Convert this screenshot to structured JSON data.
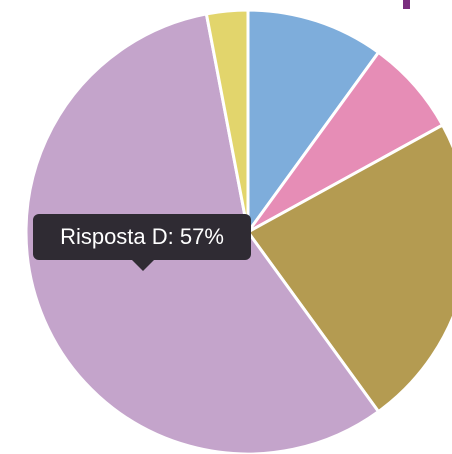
{
  "chart_data": {
    "type": "pie",
    "start_angle_deg": 0,
    "direction": "clockwise",
    "slices": [
      {
        "value": 10,
        "color": "#7eaddb"
      },
      {
        "value": 7,
        "color": "#e68db6"
      },
      {
        "value": 23,
        "color": "#b49b51"
      },
      {
        "value": 57,
        "color": "#c4a4cb"
      },
      {
        "value": 3,
        "color": "#e2d56c"
      }
    ],
    "slice_border_color": "#ffffff"
  },
  "tooltip": {
    "text": "Risposta D: 57%",
    "background": "#2f2b33",
    "text_color": "#ffffff"
  },
  "accent_color": "#7a2e7e"
}
